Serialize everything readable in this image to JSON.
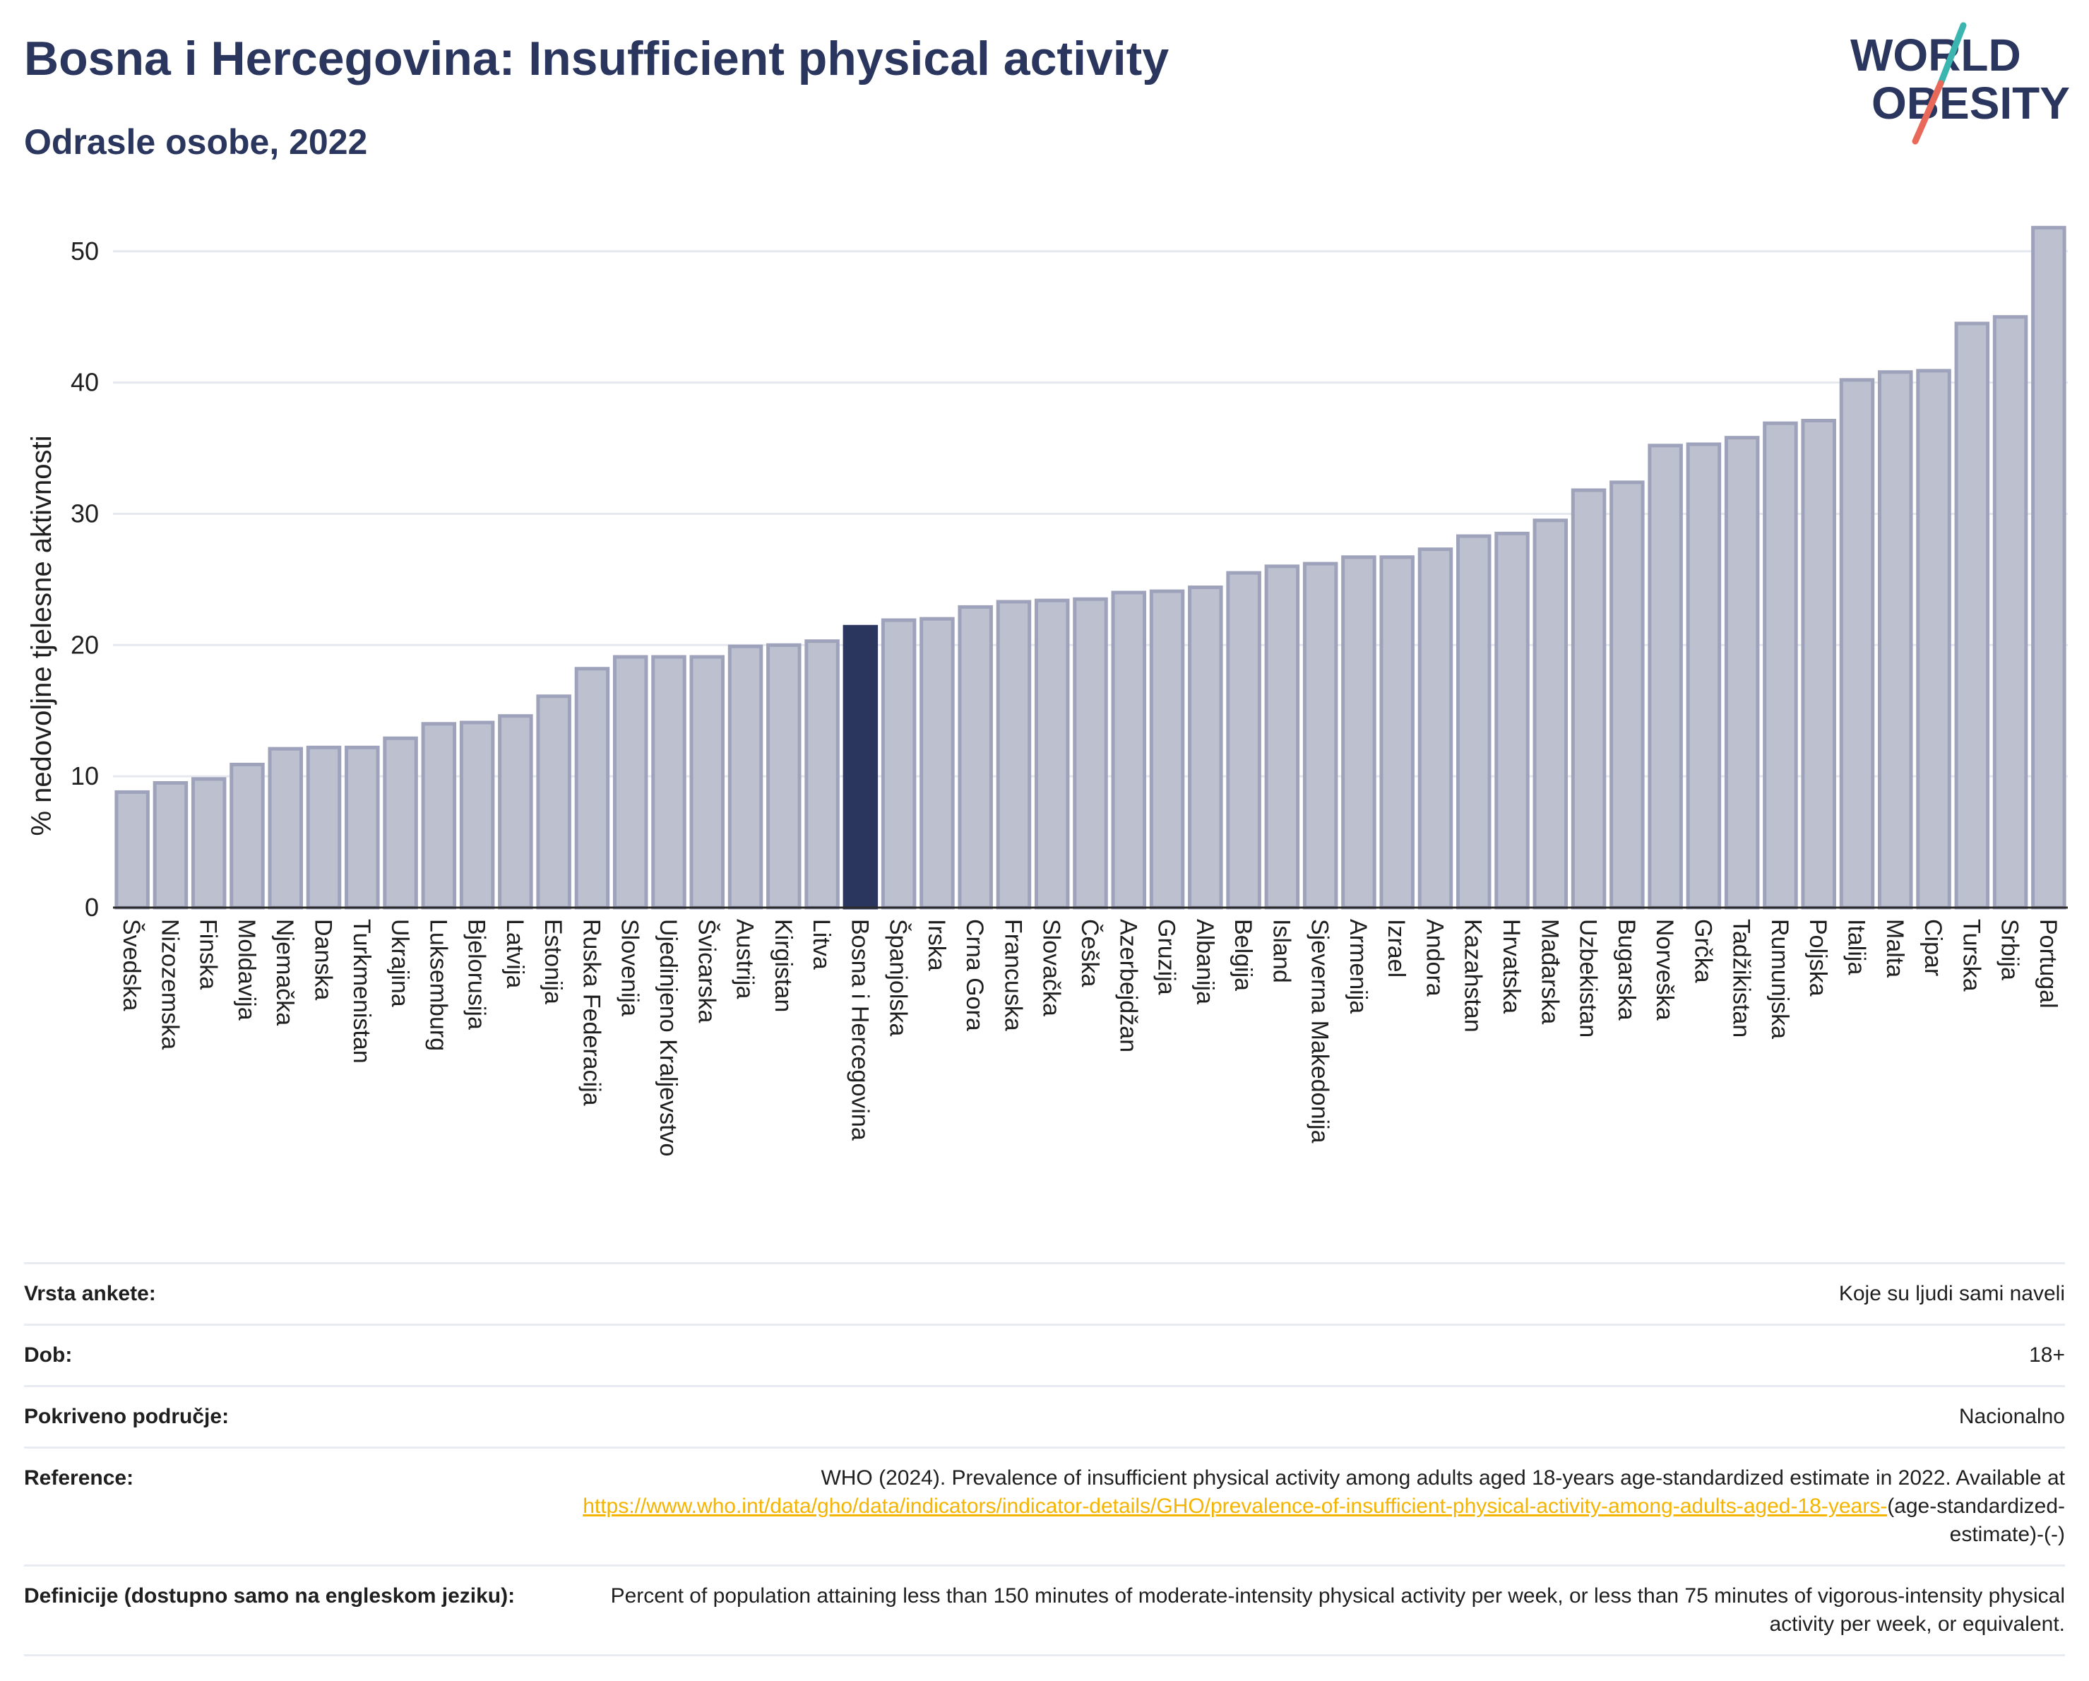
{
  "header": {
    "title": "Bosna i Hercegovina: Insufficient physical activity",
    "subtitle": "Odrasle osobe, 2022"
  },
  "logo": {
    "line1": "WORLD",
    "line2": "OBESITY",
    "colors": {
      "text": "#2b365e",
      "slash_top": "#3ab5b0",
      "slash_bottom": "#e8685a"
    }
  },
  "colors": {
    "bar": "#bcc0cf",
    "bar_edge": "#9ea3bb",
    "highlight": "#2b365e",
    "grid": "#e6e8ef",
    "axis": "#2b2b2b"
  },
  "chart_data": {
    "type": "bar",
    "ylabel": "% nedovoljne tjelesne aktivnosti",
    "ylim": [
      0,
      53
    ],
    "yticks": [
      0,
      10,
      20,
      30,
      40,
      50
    ],
    "grid": true,
    "highlight": "Bosna i Hercegovina",
    "categories": [
      "Švedska",
      "Nizozemska",
      "Finska",
      "Moldavija",
      "Njemačka",
      "Danska",
      "Turkmenistan",
      "Ukrajina",
      "Luksemburg",
      "Bjelorusija",
      "Latvija",
      "Estonija",
      "Ruska Federacija",
      "Slovenija",
      "Ujedinjeno Kraljevstvo",
      "Švicarska",
      "Austrija",
      "Kirgistan",
      "Litva",
      "Bosna i Hercegovina",
      "Španjolska",
      "Irska",
      "Crna Gora",
      "Francuska",
      "Slovačka",
      "Češka",
      "Azerbejdžan",
      "Gruzija",
      "Albanija",
      "Belgija",
      "Island",
      "Sjeverna Makedonija",
      "Armenija",
      "Izrael",
      "Andora",
      "Kazahstan",
      "Hrvatska",
      "Mađarska",
      "Uzbekistan",
      "Bugarska",
      "Norveška",
      "Grčka",
      "Tadžikistan",
      "Rumunjska",
      "Poljska",
      "Italija",
      "Malta",
      "Cipar",
      "Turska",
      "Srbija",
      "Portugal"
    ],
    "values": [
      8.8,
      9.5,
      9.8,
      10.9,
      12.1,
      12.2,
      12.2,
      12.9,
      14.0,
      14.1,
      14.6,
      16.1,
      18.2,
      19.1,
      19.1,
      19.1,
      19.9,
      20.0,
      20.3,
      21.4,
      21.9,
      22.0,
      22.9,
      23.3,
      23.4,
      23.5,
      24.0,
      24.1,
      24.4,
      25.5,
      26.0,
      26.2,
      26.7,
      26.7,
      27.3,
      28.3,
      28.5,
      29.5,
      31.8,
      32.4,
      35.2,
      35.3,
      35.8,
      36.9,
      37.1,
      40.2,
      40.8,
      40.9,
      44.5,
      45.0,
      51.8
    ]
  },
  "meta": {
    "survey_label": "Vrsta ankete:",
    "survey_value": "Koje su ljudi sami naveli",
    "age_label": "Dob:",
    "age_value": "18+",
    "coverage_label": "Pokriveno područje:",
    "coverage_value": "Nacionalno",
    "reference_label": "Reference:",
    "reference_text": "WHO (2024). Prevalence of insufficient physical activity among adults aged 18-years age-standardized estimate in 2022. Available at",
    "reference_link": "https://www.who.int/data/gho/data/indicators/indicator-details/GHO/prevalence-of-insufficient-physical-activity-among-adults-aged-18-years-",
    "reference_suffix": "(age-standardized-estimate)-(-)",
    "definition_label": "Definicije (dostupno samo na engleskom jeziku):",
    "definition_value": "Percent of population attaining less than 150 minutes of moderate-intensity physical activity per week, or less than 75 minutes of vigorous-intensity physical activity per week, or equivalent."
  }
}
